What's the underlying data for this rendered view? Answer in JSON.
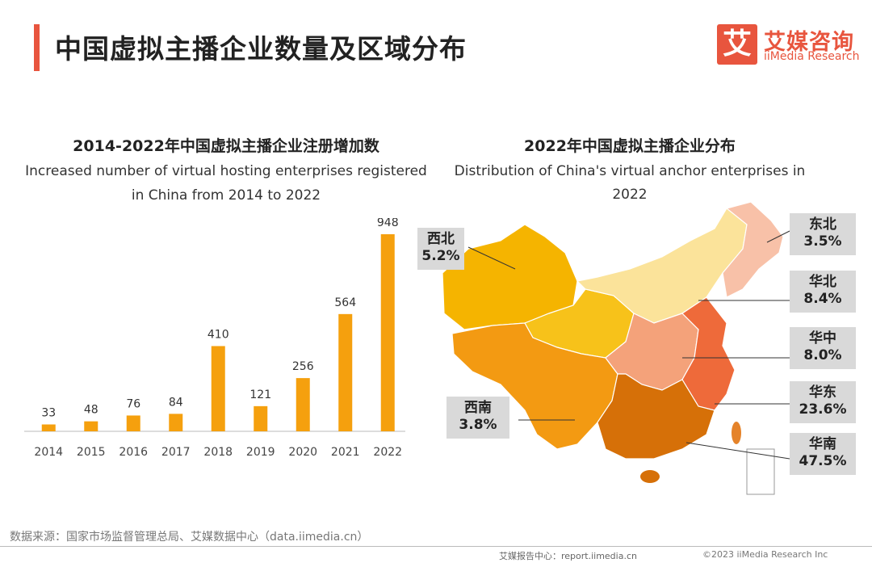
{
  "header": {
    "title": "中国虚拟主播企业数量及区域分布",
    "logo_char": "艾",
    "logo_cn": "艾媒咨询",
    "logo_en": "iiMedia Research"
  },
  "left_chart": {
    "title_cn": "2014-2022年中国虚拟主播企业注册增加数",
    "title_en_1": "Increased number of virtual hosting enterprises registered",
    "title_en_2": "in China from 2014 to 2022"
  },
  "right_chart": {
    "title_cn": "2022年中国虚拟主播企业分布",
    "title_en": "Distribution of China's virtual anchor enterprises in 2022"
  },
  "chart_data": [
    {
      "type": "bar",
      "categories": [
        "2014",
        "2015",
        "2016",
        "2017",
        "2018",
        "2019",
        "2020",
        "2021",
        "2022"
      ],
      "values": [
        33,
        48,
        76,
        84,
        410,
        121,
        256,
        564,
        948
      ],
      "title": "2014-2022年中国虚拟主播企业注册增加数",
      "subtitle": "Increased number of virtual hosting enterprises registered in China from 2014 to 2022",
      "ylim": [
        0,
        948
      ],
      "color": "#f5a00e",
      "grid": false
    },
    {
      "type": "map",
      "title": "2022年中国虚拟主播企业分布",
      "subtitle": "Distribution of China's virtual anchor enterprises in 2022",
      "regions": [
        {
          "name": "西北",
          "value": "5.2%",
          "color": "#f5b400"
        },
        {
          "name": "西南",
          "value": "3.8%",
          "color": "#f39a12"
        },
        {
          "name": "东北",
          "value": "3.5%",
          "color": "#f8c1a8"
        },
        {
          "name": "华北",
          "value": "8.4%",
          "color": "#fbe39a"
        },
        {
          "name": "华中",
          "value": "8.0%",
          "color": "#f4a27a"
        },
        {
          "name": "华东",
          "value": "23.6%",
          "color": "#ee6a3a"
        },
        {
          "name": "华南",
          "value": "47.5%",
          "color": "#d67008"
        }
      ]
    }
  ],
  "footer": {
    "source": "数据来源：国家市场监督管理总局、艾媒数据中心（data.iimedia.cn）",
    "report": "艾媒报告中心：report.iimedia.cn",
    "copyright": "©2023 iiMedia Research Inc"
  }
}
